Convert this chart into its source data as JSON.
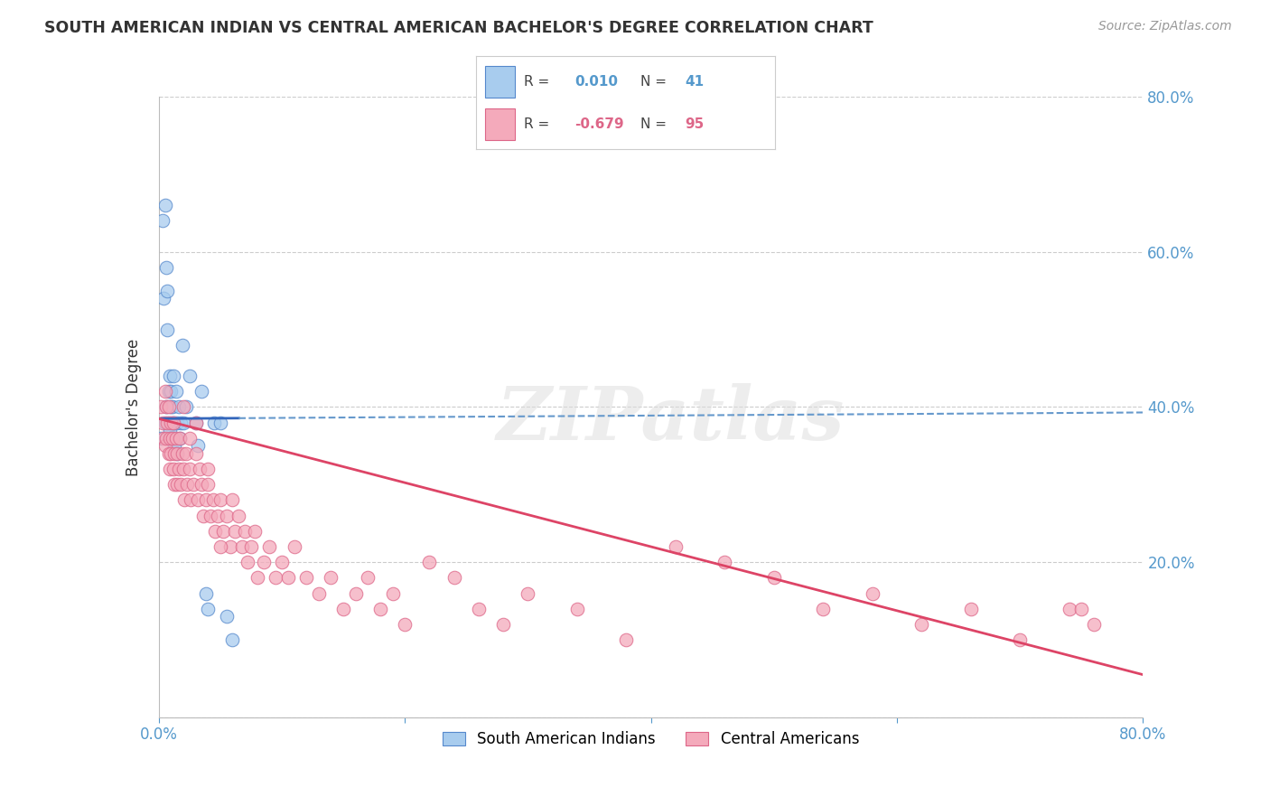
{
  "title": "SOUTH AMERICAN INDIAN VS CENTRAL AMERICAN BACHELOR'S DEGREE CORRELATION CHART",
  "source": "Source: ZipAtlas.com",
  "ylabel": "Bachelor's Degree",
  "legend_label1": "South American Indians",
  "legend_label2": "Central Americans",
  "r1_text": "0.010",
  "n1_text": "41",
  "r2_text": "-0.679",
  "n2_text": "95",
  "xlim": [
    0.0,
    0.8
  ],
  "ylim": [
    0.0,
    0.8
  ],
  "xticks": [
    0.0,
    0.2,
    0.4,
    0.6,
    0.8
  ],
  "yticks": [
    0.0,
    0.2,
    0.4,
    0.6,
    0.8
  ],
  "color_blue": "#A8CCEE",
  "color_pink": "#F4AABB",
  "edge_blue": "#5588CC",
  "edge_pink": "#DD6688",
  "trendline_blue_solid": "#3366BB",
  "trendline_blue_dashed": "#6699CC",
  "trendline_pink": "#DD4466",
  "background": "#FFFFFF",
  "grid_color": "#CCCCCC",
  "title_color": "#333333",
  "axis_label_color": "#5599CC",
  "watermark_text": "ZIPatlas",
  "watermark_color": "#DDDDDD",
  "blue_x": [
    0.002,
    0.003,
    0.004,
    0.005,
    0.005,
    0.006,
    0.006,
    0.007,
    0.007,
    0.008,
    0.008,
    0.009,
    0.009,
    0.01,
    0.01,
    0.01,
    0.011,
    0.011,
    0.012,
    0.012,
    0.013,
    0.013,
    0.014,
    0.015,
    0.015,
    0.016,
    0.017,
    0.018,
    0.019,
    0.02,
    0.022,
    0.025,
    0.03,
    0.032,
    0.035,
    0.038,
    0.04,
    0.045,
    0.05,
    0.055,
    0.06
  ],
  "blue_y": [
    0.36,
    0.64,
    0.54,
    0.38,
    0.66,
    0.4,
    0.58,
    0.55,
    0.5,
    0.38,
    0.42,
    0.37,
    0.44,
    0.4,
    0.36,
    0.42,
    0.4,
    0.38,
    0.36,
    0.44,
    0.38,
    0.35,
    0.42,
    0.34,
    0.38,
    0.4,
    0.36,
    0.38,
    0.48,
    0.38,
    0.4,
    0.44,
    0.38,
    0.35,
    0.42,
    0.16,
    0.14,
    0.38,
    0.38,
    0.13,
    0.1
  ],
  "pink_x": [
    0.002,
    0.003,
    0.004,
    0.005,
    0.005,
    0.006,
    0.006,
    0.007,
    0.008,
    0.008,
    0.009,
    0.009,
    0.01,
    0.01,
    0.011,
    0.012,
    0.012,
    0.013,
    0.013,
    0.014,
    0.015,
    0.015,
    0.016,
    0.017,
    0.018,
    0.019,
    0.02,
    0.021,
    0.022,
    0.023,
    0.025,
    0.026,
    0.028,
    0.03,
    0.032,
    0.033,
    0.035,
    0.036,
    0.038,
    0.04,
    0.042,
    0.044,
    0.046,
    0.048,
    0.05,
    0.052,
    0.055,
    0.058,
    0.06,
    0.062,
    0.065,
    0.068,
    0.07,
    0.072,
    0.075,
    0.078,
    0.08,
    0.085,
    0.09,
    0.095,
    0.1,
    0.105,
    0.11,
    0.12,
    0.13,
    0.14,
    0.15,
    0.16,
    0.17,
    0.18,
    0.19,
    0.2,
    0.22,
    0.24,
    0.26,
    0.28,
    0.3,
    0.34,
    0.38,
    0.42,
    0.46,
    0.5,
    0.54,
    0.58,
    0.62,
    0.66,
    0.7,
    0.74,
    0.75,
    0.76,
    0.02,
    0.025,
    0.03,
    0.04,
    0.05
  ],
  "pink_y": [
    0.4,
    0.38,
    0.36,
    0.42,
    0.35,
    0.4,
    0.36,
    0.38,
    0.34,
    0.4,
    0.36,
    0.32,
    0.38,
    0.34,
    0.36,
    0.32,
    0.38,
    0.3,
    0.34,
    0.36,
    0.3,
    0.34,
    0.32,
    0.36,
    0.3,
    0.34,
    0.32,
    0.28,
    0.34,
    0.3,
    0.32,
    0.28,
    0.3,
    0.34,
    0.28,
    0.32,
    0.3,
    0.26,
    0.28,
    0.3,
    0.26,
    0.28,
    0.24,
    0.26,
    0.28,
    0.24,
    0.26,
    0.22,
    0.28,
    0.24,
    0.26,
    0.22,
    0.24,
    0.2,
    0.22,
    0.24,
    0.18,
    0.2,
    0.22,
    0.18,
    0.2,
    0.18,
    0.22,
    0.18,
    0.16,
    0.18,
    0.14,
    0.16,
    0.18,
    0.14,
    0.16,
    0.12,
    0.2,
    0.18,
    0.14,
    0.12,
    0.16,
    0.14,
    0.1,
    0.22,
    0.2,
    0.18,
    0.14,
    0.16,
    0.12,
    0.14,
    0.1,
    0.14,
    0.14,
    0.12,
    0.4,
    0.36,
    0.38,
    0.32,
    0.22
  ]
}
